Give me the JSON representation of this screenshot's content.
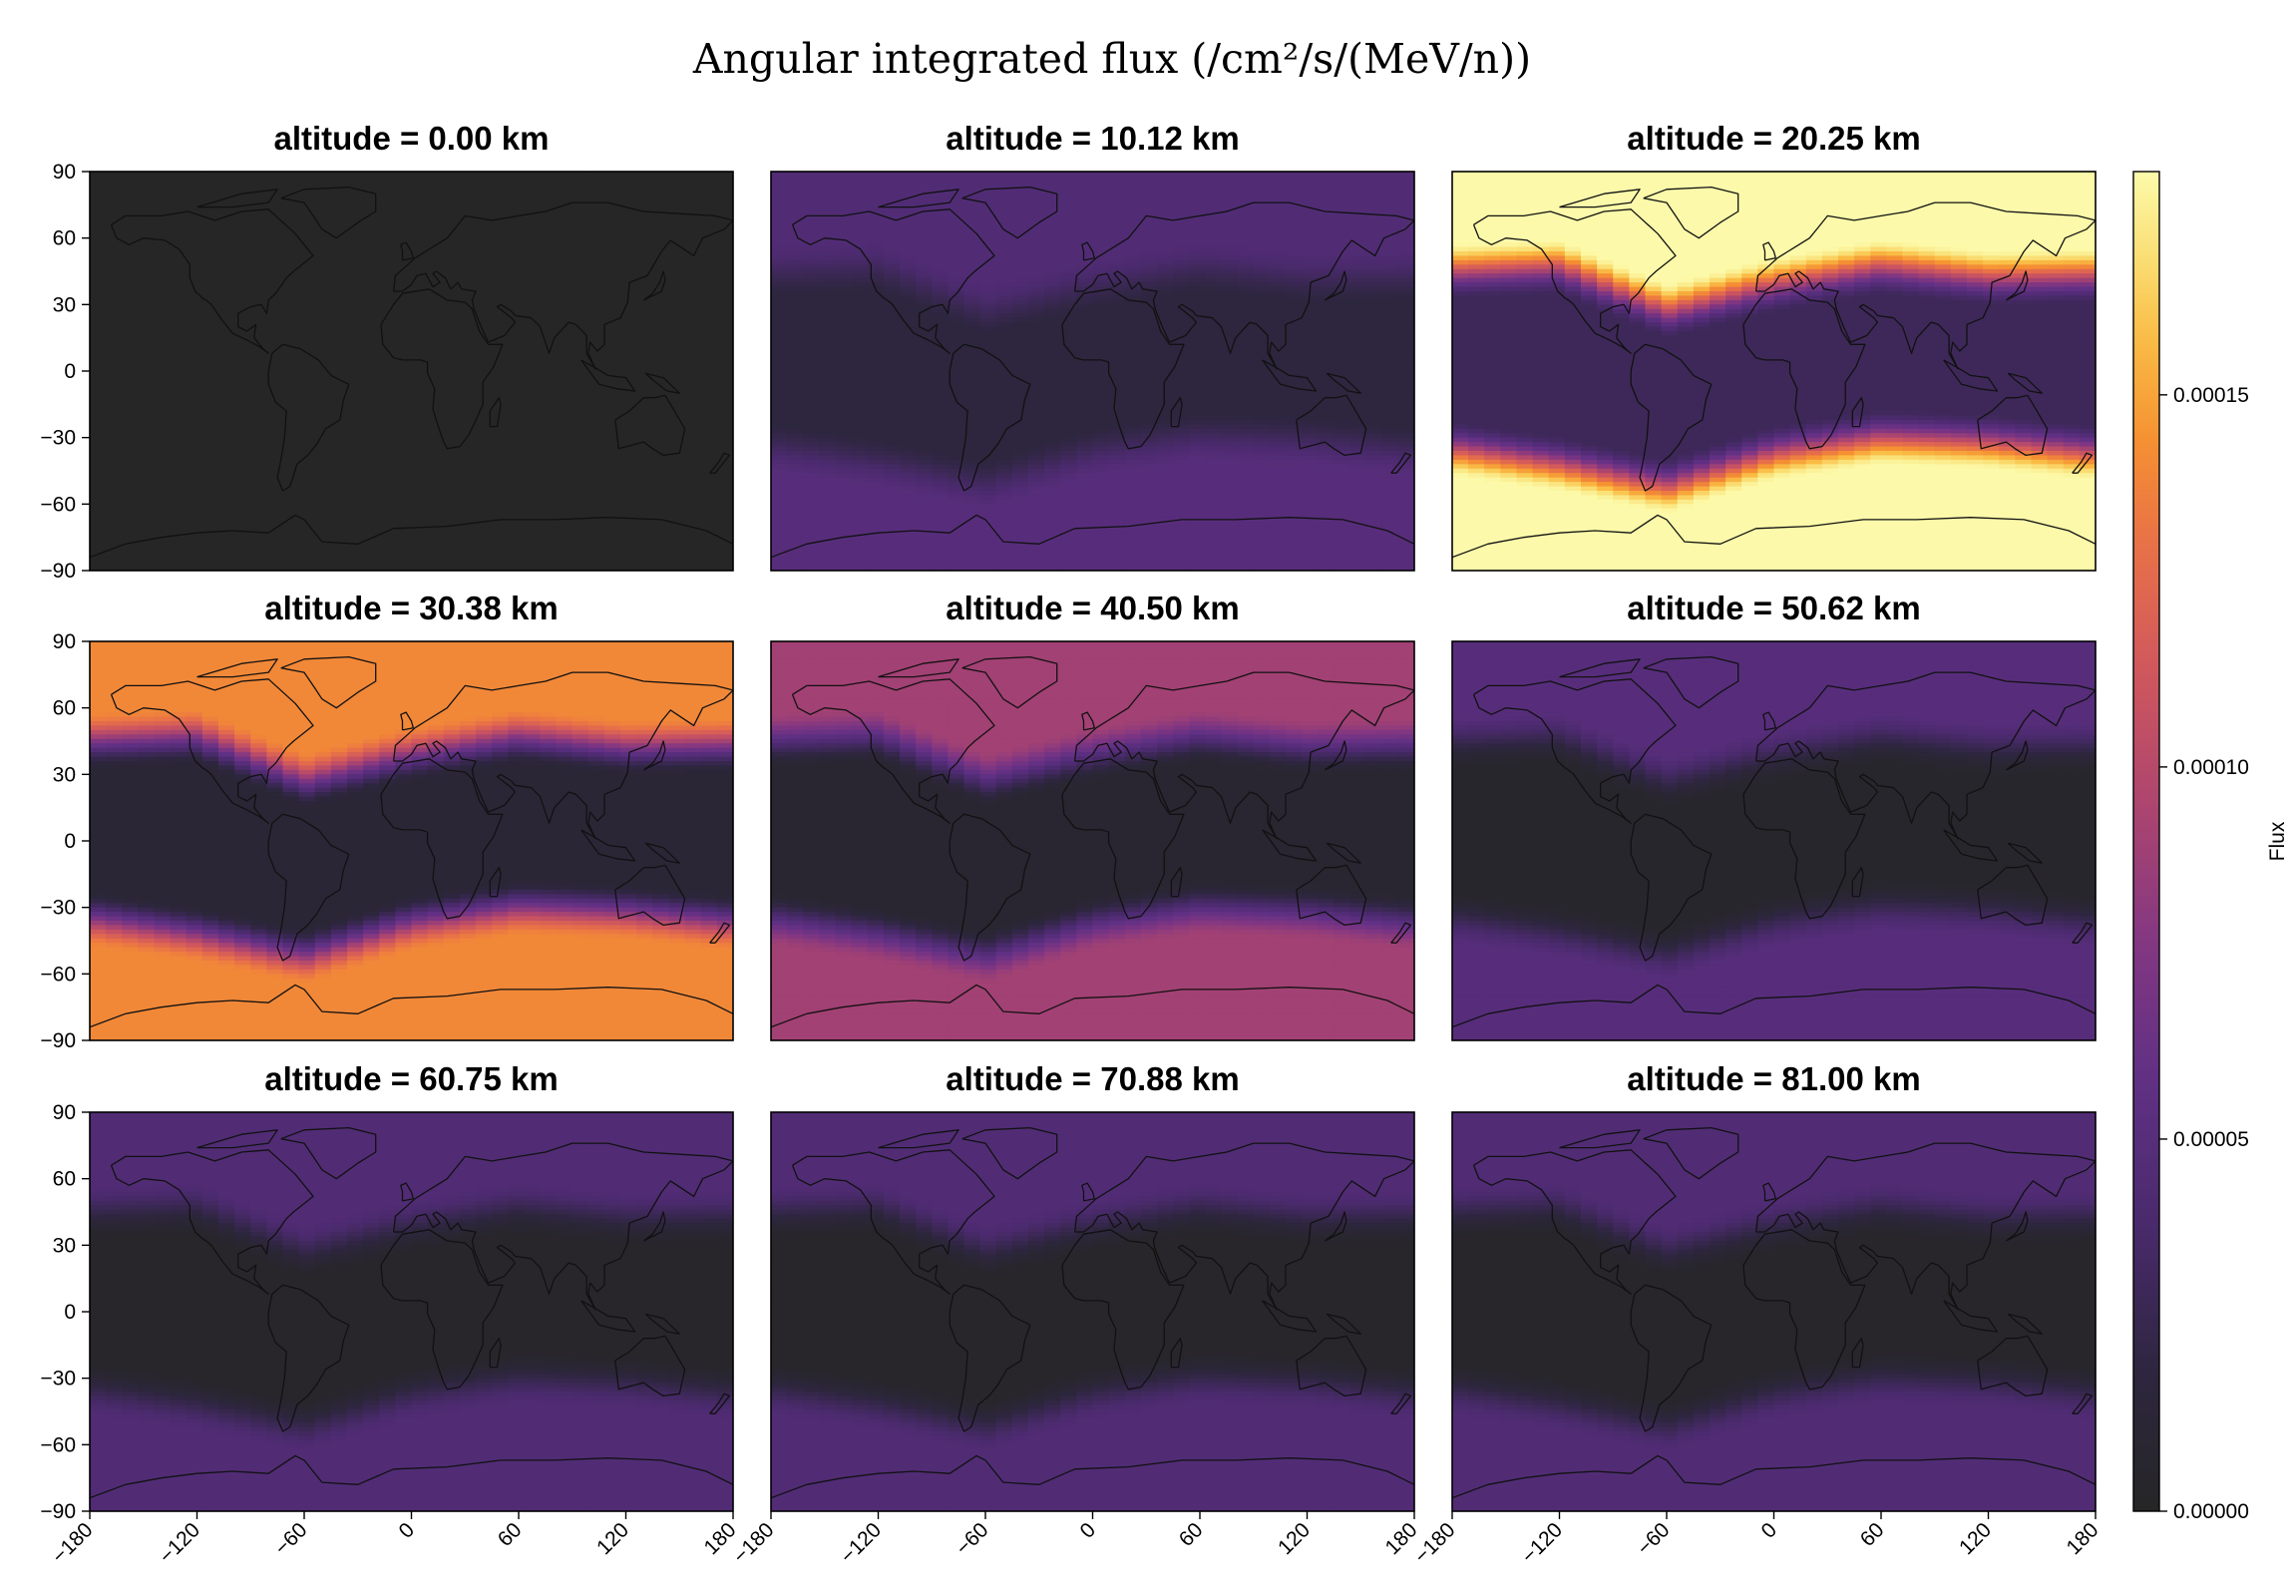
{
  "chart_data": {
    "type": "heatmap",
    "title": "Angular integrated flux (/cm²/s/(MeV/n))",
    "xlim": [
      -180,
      180
    ],
    "ylim": [
      -90,
      90
    ],
    "xticks": [
      "−180",
      "−120",
      "−60",
      "0",
      "60",
      "120",
      "180"
    ],
    "yticks": [
      "90",
      "60",
      "30",
      "0",
      "−30",
      "−60",
      "−90"
    ],
    "colorbar": {
      "label": "Flux",
      "colormap": "inferno",
      "range": [
        0.0,
        0.00018
      ],
      "ticks": [
        0.0,
        5e-05,
        0.0001,
        0.00015
      ],
      "tick_labels": [
        "0.00000",
        "0.00005",
        "0.00010",
        "0.00015"
      ]
    },
    "band_profile": {
      "x_longitude": [
        -180,
        -120,
        -60,
        0,
        60,
        120,
        180
      ],
      "north_edge_latitude": [
        48,
        50,
        30,
        42,
        50,
        45,
        46
      ],
      "south_edge_latitude": [
        -38,
        -45,
        -55,
        -40,
        -33,
        -35,
        -40
      ]
    },
    "panels": [
      {
        "title": "altitude = 0.00 km",
        "altitude_km": 0.0,
        "flux_equator": 0.0,
        "flux_high_lat_north": 0.0,
        "flux_high_lat_south": 0.0
      },
      {
        "title": "altitude = 10.12 km",
        "altitude_km": 10.12,
        "flux_equator": 1.8e-05,
        "flux_high_lat_north": 4.5e-05,
        "flux_high_lat_south": 5e-05
      },
      {
        "title": "altitude = 20.25 km",
        "altitude_km": 20.25,
        "flux_equator": 3e-05,
        "flux_high_lat_north": 0.00018,
        "flux_high_lat_south": 0.00018
      },
      {
        "title": "altitude = 30.38 km",
        "altitude_km": 30.38,
        "flux_equator": 1.2e-05,
        "flux_high_lat_north": 0.00014,
        "flux_high_lat_south": 0.00014
      },
      {
        "title": "altitude = 40.50 km",
        "altitude_km": 40.5,
        "flux_equator": 8e-06,
        "flux_high_lat_north": 9e-05,
        "flux_high_lat_south": 9e-05
      },
      {
        "title": "altitude = 50.62 km",
        "altitude_km": 50.62,
        "flux_equator": 5e-06,
        "flux_high_lat_north": 5e-05,
        "flux_high_lat_south": 5e-05
      },
      {
        "title": "altitude = 60.75 km",
        "altitude_km": 60.75,
        "flux_equator": 4e-06,
        "flux_high_lat_north": 4.5e-05,
        "flux_high_lat_south": 4.5e-05
      },
      {
        "title": "altitude = 70.88 km",
        "altitude_km": 70.88,
        "flux_equator": 4e-06,
        "flux_high_lat_north": 4.5e-05,
        "flux_high_lat_south": 4.5e-05
      },
      {
        "title": "altitude = 81.00 km",
        "altitude_km": 81.0,
        "flux_equator": 4e-06,
        "flux_high_lat_north": 4.5e-05,
        "flux_high_lat_south": 4.5e-05
      }
    ]
  }
}
